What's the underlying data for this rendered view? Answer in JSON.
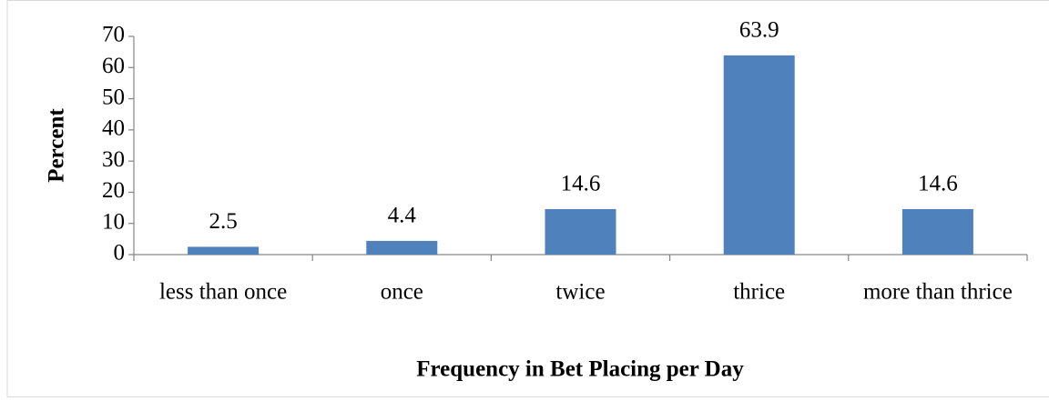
{
  "chart_data": {
    "type": "bar",
    "x_label": "Frequency in Bet Placing per Day",
    "y_label": "Percent",
    "categories": [
      "less than once",
      "once",
      "twice",
      "thrice",
      "more than thrice"
    ],
    "values": [
      2.5,
      4.4,
      14.6,
      63.9,
      14.6
    ],
    "color": "#4f81bd",
    "ylim": [
      0,
      70
    ],
    "yticks": [
      0,
      10,
      20,
      30,
      40,
      50,
      60,
      70
    ],
    "grid": false
  }
}
